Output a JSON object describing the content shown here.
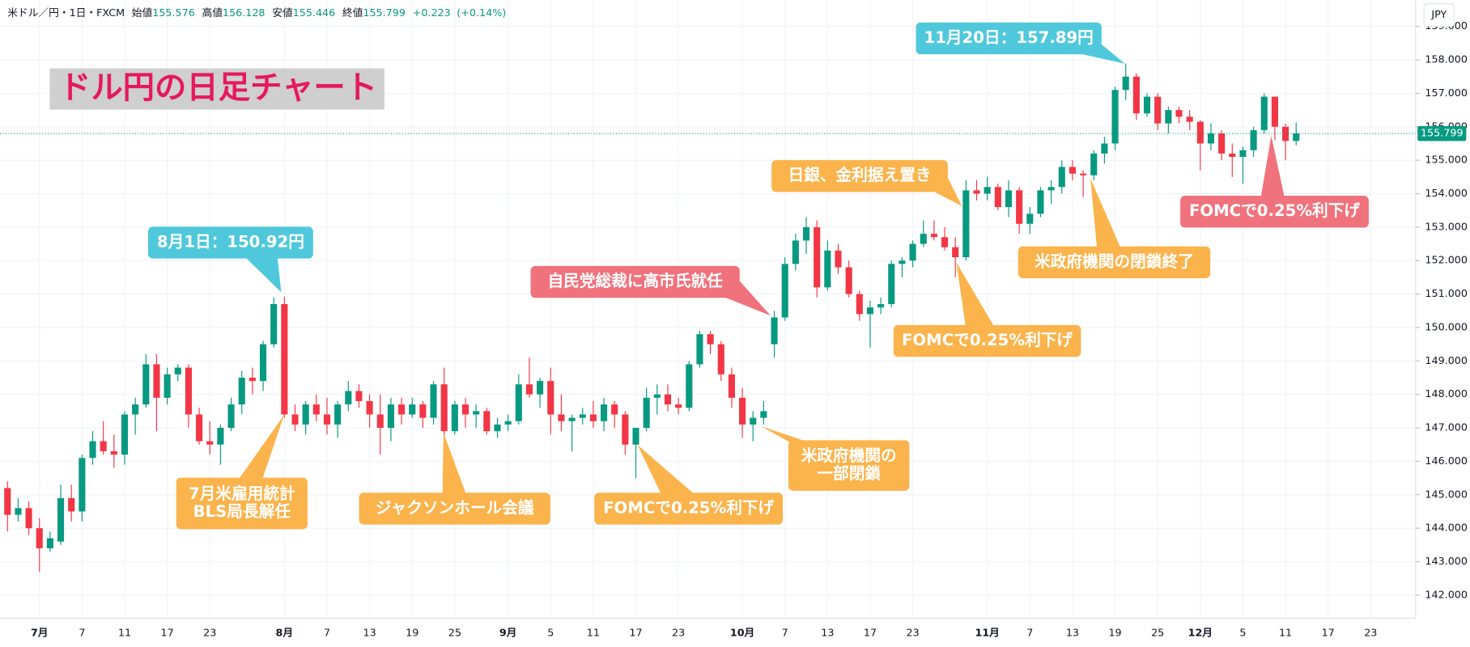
{
  "header": {
    "symbol": "米ドル／円・1日・FXCM",
    "open_label": "始値",
    "open": 155.576,
    "high_label": "高値",
    "high": 156.128,
    "low_label": "安値",
    "low": 155.446,
    "close_label": "終値",
    "close": 155.799,
    "change": "+0.223",
    "change_pct": "(+0.14%)"
  },
  "chart_data": {
    "type": "candlestick",
    "title": "ドル円の日足チャート",
    "currency": "JPY",
    "categories": [
      null,
      null,
      null,
      "7月",
      null,
      null,
      null,
      "7",
      null,
      null,
      null,
      "11",
      null,
      null,
      null,
      "17",
      null,
      null,
      null,
      "23",
      null,
      null,
      null,
      null,
      null,
      null,
      "8月",
      null,
      null,
      null,
      "7",
      null,
      null,
      null,
      "13",
      null,
      null,
      null,
      "19",
      null,
      null,
      null,
      "25",
      null,
      null,
      null,
      null,
      "9月",
      null,
      null,
      null,
      "5",
      null,
      null,
      null,
      "11",
      null,
      null,
      null,
      "17",
      null,
      null,
      null,
      "23",
      null,
      null,
      null,
      null,
      null,
      "10月",
      null,
      null,
      null,
      "7",
      null,
      null,
      null,
      "13",
      null,
      null,
      null,
      "17",
      null,
      null,
      null,
      "23",
      null,
      null,
      null,
      null,
      null,
      null,
      "11月",
      null,
      null,
      null,
      "7",
      null,
      null,
      null,
      "13",
      null,
      null,
      null,
      "19",
      null,
      null,
      null,
      "25",
      null,
      null,
      null,
      "12月",
      null,
      null,
      null,
      "5",
      null,
      null,
      null,
      "11",
      null,
      null,
      null,
      "17",
      null,
      null,
      null,
      "23",
      null,
      null,
      null,
      null
    ],
    "open": [
      145.2,
      144.4,
      144.6,
      144.0,
      143.4,
      143.6,
      144.9,
      144.5,
      146.1,
      146.6,
      146.3,
      146.2,
      147.4,
      147.7,
      148.9,
      147.9,
      148.6,
      148.8,
      147.4,
      146.6,
      146.5,
      147.0,
      147.7,
      148.5,
      148.4,
      149.5,
      150.7,
      147.4,
      147.1,
      147.7,
      147.4,
      147.1,
      147.7,
      148.1,
      147.8,
      147.4,
      147.0,
      147.7,
      147.4,
      147.7,
      147.3,
      148.3,
      146.9,
      147.7,
      147.4,
      147.5,
      146.9,
      147.1,
      147.2,
      148.3,
      148.0,
      148.4,
      147.4,
      147.2,
      147.3,
      147.4,
      147.2,
      147.7,
      147.4,
      146.5,
      147.0,
      147.9,
      148.0,
      147.7,
      147.6,
      148.9,
      149.8,
      149.5,
      148.6,
      147.9,
      147.1,
      147.3,
      149.5,
      150.3,
      151.9,
      152.6,
      153.0,
      151.2,
      152.3,
      151.8,
      151.0,
      150.4,
      150.6,
      150.7,
      151.9,
      152.0,
      152.5,
      152.8,
      152.7,
      152.4,
      152.1,
      154.1,
      154.0,
      154.2,
      153.6,
      154.1,
      153.1,
      153.4,
      154.1,
      154.2,
      154.8,
      154.6,
      154.55,
      155.2,
      155.5,
      157.1,
      157.5,
      156.4,
      156.9,
      156.1,
      156.5,
      156.3,
      156.15,
      155.5,
      155.8,
      155.2,
      155.1,
      155.3,
      155.9,
      156.9,
      156.0,
      155.576,
      null,
      null,
      null,
      null,
      null,
      null,
      null,
      null,
      null,
      null,
      null
    ],
    "high": [
      145.4,
      144.9,
      144.8,
      144.3,
      143.9,
      145.3,
      145.3,
      146.2,
      146.9,
      147.2,
      146.8,
      147.5,
      147.9,
      149.2,
      149.2,
      148.8,
      148.9,
      148.9,
      147.6,
      147.2,
      147.1,
      147.9,
      148.7,
      148.8,
      149.6,
      150.9,
      150.92,
      147.7,
      147.8,
      148.0,
      147.9,
      147.8,
      148.4,
      148.3,
      148.0,
      148.0,
      147.9,
      147.9,
      147.9,
      147.8,
      148.4,
      148.8,
      147.8,
      147.9,
      147.7,
      147.6,
      147.3,
      147.4,
      148.6,
      149.1,
      148.5,
      148.8,
      148.0,
      147.4,
      147.6,
      147.8,
      147.9,
      147.8,
      147.5,
      147.0,
      148.2,
      148.3,
      148.3,
      147.9,
      149.0,
      149.9,
      149.9,
      149.6,
      148.8,
      148.2,
      147.5,
      147.8,
      150.5,
      152.1,
      152.8,
      153.3,
      153.2,
      152.6,
      152.5,
      152.0,
      151.1,
      150.8,
      150.9,
      152.0,
      152.1,
      152.6,
      153.2,
      153.2,
      153.0,
      152.7,
      154.4,
      154.4,
      154.5,
      154.3,
      154.4,
      154.2,
      153.6,
      154.2,
      154.4,
      155.0,
      155.0,
      154.7,
      155.3,
      155.7,
      157.2,
      157.89,
      157.6,
      157.0,
      157.0,
      156.6,
      156.6,
      156.5,
      156.2,
      156.1,
      155.9,
      155.5,
      155.4,
      156.0,
      157.0,
      156.9,
      156.1,
      156.128,
      null,
      null,
      null,
      null,
      null,
      null,
      null,
      null,
      null,
      null,
      null
    ],
    "low": [
      143.9,
      144.2,
      143.8,
      142.7,
      143.3,
      143.5,
      144.2,
      144.2,
      145.9,
      146.2,
      145.8,
      145.9,
      146.8,
      147.6,
      146.9,
      147.7,
      148.4,
      147.0,
      146.5,
      146.2,
      145.9,
      146.9,
      147.4,
      148.0,
      148.1,
      149.4,
      147.3,
      146.9,
      146.8,
      147.2,
      146.8,
      146.7,
      147.5,
      147.6,
      147.0,
      146.2,
      146.6,
      147.1,
      147.3,
      147.0,
      147.1,
      146.6,
      146.8,
      147.0,
      147.0,
      146.8,
      146.7,
      146.9,
      147.1,
      147.9,
      147.6,
      146.8,
      146.9,
      146.3,
      147.1,
      147.0,
      146.9,
      147.0,
      146.2,
      145.5,
      146.9,
      147.4,
      147.5,
      147.4,
      147.5,
      148.8,
      149.2,
      148.4,
      147.6,
      146.7,
      146.6,
      147.1,
      149.1,
      150.2,
      151.7,
      152.2,
      150.9,
      151.1,
      151.6,
      150.9,
      150.2,
      149.4,
      150.4,
      150.6,
      151.5,
      151.8,
      152.4,
      152.6,
      152.3,
      151.5,
      152.0,
      153.8,
      153.8,
      153.5,
      153.3,
      152.8,
      152.8,
      153.3,
      153.7,
      154.0,
      154.4,
      153.9,
      154.4,
      154.9,
      155.3,
      156.8,
      156.2,
      156.3,
      155.9,
      155.8,
      156.1,
      155.9,
      154.7,
      155.3,
      155.0,
      154.5,
      154.3,
      155.1,
      155.8,
      155.6,
      155.0,
      155.446,
      null,
      null,
      null,
      null,
      null,
      null,
      null,
      null,
      null,
      null,
      null
    ],
    "close": [
      144.4,
      144.6,
      144.0,
      143.4,
      143.7,
      144.9,
      144.5,
      146.1,
      146.6,
      146.3,
      146.2,
      147.4,
      147.7,
      148.9,
      147.9,
      148.6,
      148.8,
      147.4,
      146.6,
      146.5,
      147.0,
      147.7,
      148.5,
      148.4,
      149.5,
      150.7,
      147.4,
      147.1,
      147.7,
      147.4,
      147.1,
      147.7,
      148.1,
      147.8,
      147.4,
      147.0,
      147.7,
      147.4,
      147.7,
      147.3,
      148.3,
      146.9,
      147.7,
      147.4,
      147.5,
      146.9,
      147.1,
      147.2,
      148.3,
      148.0,
      148.4,
      147.4,
      147.2,
      147.3,
      147.4,
      147.2,
      147.7,
      147.4,
      146.5,
      147.0,
      147.9,
      148.0,
      147.7,
      147.6,
      148.9,
      149.8,
      149.5,
      148.6,
      147.9,
      147.1,
      147.3,
      147.5,
      150.3,
      151.9,
      152.6,
      153.0,
      151.2,
      152.3,
      151.8,
      151.0,
      150.4,
      150.6,
      150.7,
      151.9,
      152.0,
      152.5,
      152.8,
      152.7,
      152.4,
      152.1,
      154.1,
      154.0,
      154.2,
      153.6,
      154.1,
      153.1,
      153.4,
      154.1,
      154.2,
      154.8,
      154.6,
      154.55,
      155.2,
      155.5,
      157.1,
      157.5,
      156.4,
      156.9,
      156.1,
      156.5,
      156.3,
      156.15,
      155.5,
      155.8,
      155.2,
      155.1,
      155.3,
      155.9,
      156.9,
      156.0,
      155.576,
      155.799,
      null,
      null,
      null,
      null,
      null,
      null,
      null,
      null,
      null,
      null,
      null
    ],
    "up_color": "#089981",
    "down_color": "#f23645",
    "ylim": [
      141.31,
      159.79
    ],
    "yticks": [
      {
        "value": 142,
        "label": "142.000"
      },
      {
        "value": 143,
        "label": "143.000"
      },
      {
        "value": 144,
        "label": "144.000"
      },
      {
        "value": 145,
        "label": "145.000"
      },
      {
        "value": 146,
        "label": "146.000"
      },
      {
        "value": 147,
        "label": "147.000"
      },
      {
        "value": 148,
        "label": "148.000"
      },
      {
        "value": 149,
        "label": "149.000"
      },
      {
        "value": 150,
        "label": "150.000"
      },
      {
        "value": 151,
        "label": "151.000"
      },
      {
        "value": 152,
        "label": "152.000"
      },
      {
        "value": 153,
        "label": "153.000"
      },
      {
        "value": 154,
        "label": "154.000"
      },
      {
        "value": 155,
        "label": "155.000"
      },
      {
        "value": 156,
        "label": "156.000"
      },
      {
        "value": 157,
        "label": "157.000"
      },
      {
        "value": 158,
        "label": "158.000"
      },
      {
        "value": 159,
        "label": "159.000"
      }
    ],
    "grid": true,
    "last_price": 155.799,
    "annotations": [
      {
        "lines": [
          "8月1日：150.92円"
        ]
      },
      {
        "lines": [
          "11月20日：157.89円"
        ]
      },
      {
        "lines": [
          "7月米雇用統計",
          "BLS局長解任"
        ]
      },
      {
        "lines": [
          "ジャクソンホール会議"
        ]
      },
      {
        "lines": [
          "FOMCで0.25%利下げ"
        ]
      },
      {
        "lines": [
          "米政府機関の",
          "一部閉鎖"
        ]
      },
      {
        "lines": [
          "自民党総裁に高市氏就任"
        ]
      },
      {
        "lines": [
          "日銀、金利据え置き"
        ]
      },
      {
        "lines": [
          "FOMCで0.25%利下げ"
        ]
      },
      {
        "lines": [
          "米政府機関の閉鎖終了"
        ]
      },
      {
        "lines": [
          "FOMCで0.25%利下げ"
        ]
      }
    ]
  }
}
